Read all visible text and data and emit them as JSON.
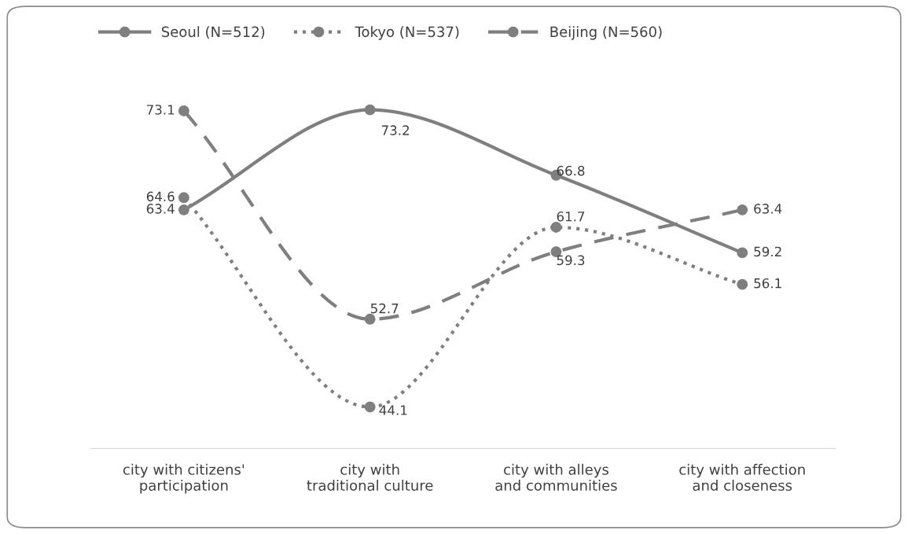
{
  "chart_data": {
    "type": "line",
    "categories": [
      "city with citizens' participation",
      "city with traditional culture",
      "city with alleys and communities",
      "city with affection and closeness"
    ],
    "series": [
      {
        "name": "Seoul (N=512)",
        "color": "#7f7f7f",
        "line_style": "solid",
        "values": [
          63.4,
          73.2,
          66.8,
          59.2
        ]
      },
      {
        "name": "Tokyo (N=537)",
        "color": "#7f7f7f",
        "line_style": "dotted",
        "values": [
          64.6,
          44.1,
          61.7,
          56.1
        ]
      },
      {
        "name": "Beijing (N=560)",
        "color": "#7f7f7f",
        "line_style": "dashed",
        "values": [
          73.1,
          52.7,
          59.3,
          63.4
        ]
      }
    ],
    "data_labels": true,
    "marker": "circle",
    "legend": "top",
    "grid": false
  }
}
